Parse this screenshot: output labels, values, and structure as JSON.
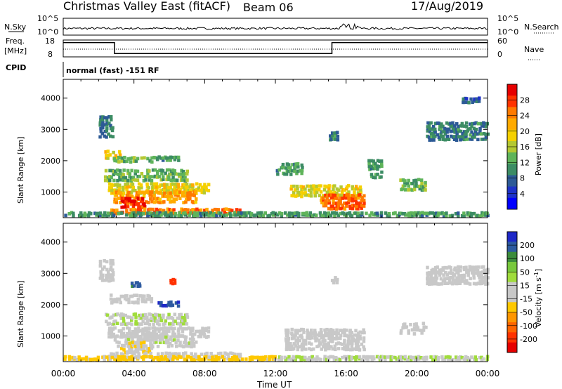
{
  "header": {
    "title": "Christmas Valley East (fitACF)",
    "beam": "Beam 06",
    "date": "17/Aug/2019"
  },
  "strips": {
    "nsky_label": "N.Sky",
    "nsky_ticks": [
      "10^5",
      "10^0"
    ],
    "nsearch_label": "N.Search",
    "nsearch_ticks": [
      "10^5",
      "10^0"
    ],
    "freq_label_1": "Freq.",
    "freq_label_2": "[MHz]",
    "freq_ticks": [
      "18",
      "8"
    ],
    "nave_label": "Nave",
    "nave_ticks": [
      "60",
      "0"
    ],
    "cpid_label": "CPID",
    "cpid_text": "normal (fast) -151 RF"
  },
  "xaxis": {
    "label": "Time UT",
    "ticks": [
      "00:00",
      "04:00",
      "08:00",
      "12:00",
      "16:00",
      "20:00",
      "00:00"
    ]
  },
  "colorbars": {
    "power": {
      "label": "Power [dB]",
      "ticks": [
        "28",
        "24",
        "20",
        "16",
        "12",
        "8",
        "4"
      ],
      "colors": [
        "#e60000",
        "#ff3300",
        "#ff7a00",
        "#ffaa00",
        "#f5d000",
        "#b4c832",
        "#5fb45a",
        "#3c8c64",
        "#2d5a96",
        "#1e32c8",
        "#0000ff"
      ]
    },
    "velocity": {
      "label": "Velocity [m s^-1]",
      "ticks": [
        "200",
        "100",
        "50",
        "15",
        "-15",
        "-50",
        "-100",
        "-200"
      ],
      "colors": [
        "#1e28c8",
        "#2d5aa0",
        "#3c8c3c",
        "#78c83c",
        "#a0dc3c",
        "#c8c8c8",
        "#c8c8c8",
        "#ffc800",
        "#ff9600",
        "#ff6400",
        "#ff3200",
        "#e60000"
      ]
    }
  },
  "chart_data": [
    {
      "type": "line",
      "title": "N.Sky / N.Search",
      "x_range_hours": [
        0,
        24
      ],
      "series": [
        {
          "name": "N.Sky",
          "value_approx": "10^1 to 10^2"
        }
      ]
    },
    {
      "type": "line",
      "title": "Freq. / Nave",
      "series": [
        {
          "name": "Freq. [MHz]",
          "segments": [
            {
              "x": [
                0,
                2.9
              ],
              "y": 16.5
            },
            {
              "x": [
                2.9,
                15.2
              ],
              "y": 10
            },
            {
              "x": [
                15.2,
                24
              ],
              "y": 16.5
            }
          ]
        },
        {
          "name": "Nave",
          "value": 22
        }
      ]
    },
    {
      "type": "heatmap",
      "title": "Power [dB]",
      "xlabel": "Time UT",
      "ylabel": "Slant Range [km]",
      "xlim_hours": [
        0,
        24
      ],
      "ylim_km": [
        180,
        4600
      ],
      "yticks": [
        1000,
        2000,
        3000,
        4000
      ],
      "clim": [
        0,
        30
      ],
      "regions": [
        {
          "t": [
            2.0,
            2.8
          ],
          "r": [
            2700,
            3400
          ],
          "v": 8
        },
        {
          "t": [
            2.3,
            3.2
          ],
          "r": [
            2000,
            2300
          ],
          "v": 18
        },
        {
          "t": [
            2.8,
            5.0
          ],
          "r": [
            1900,
            2100
          ],
          "v": 12
        },
        {
          "t": [
            5.0,
            6.5
          ],
          "r": [
            1950,
            2100
          ],
          "v": 10
        },
        {
          "t": [
            2.3,
            7.0
          ],
          "r": [
            1300,
            1700
          ],
          "v": 12
        },
        {
          "t": [
            2.5,
            8.2
          ],
          "r": [
            900,
            1250
          ],
          "v": 17
        },
        {
          "t": [
            2.8,
            7.5
          ],
          "r": [
            600,
            1000
          ],
          "v": 22
        },
        {
          "t": [
            3.2,
            4.6
          ],
          "r": [
            450,
            800
          ],
          "v": 28
        },
        {
          "t": [
            2.5,
            10.0
          ],
          "r": [
            250,
            450
          ],
          "v": 24
        },
        {
          "t": [
            0.0,
            24.0
          ],
          "r": [
            180,
            320
          ],
          "v": 10
        },
        {
          "t": [
            12.8,
            16.8
          ],
          "r": [
            800,
            1200
          ],
          "v": 17
        },
        {
          "t": [
            14.5,
            17.0
          ],
          "r": [
            400,
            900
          ],
          "v": 25
        },
        {
          "t": [
            12.0,
            13.5
          ],
          "r": [
            1500,
            1900
          ],
          "v": 10
        },
        {
          "t": [
            15.0,
            15.5
          ],
          "r": [
            2600,
            2900
          ],
          "v": 8
        },
        {
          "t": [
            17.2,
            18.0
          ],
          "r": [
            1400,
            2000
          ],
          "v": 10
        },
        {
          "t": [
            19.0,
            20.5
          ],
          "r": [
            1000,
            1400
          ],
          "v": 12
        },
        {
          "t": [
            20.5,
            24.0
          ],
          "r": [
            2600,
            3200
          ],
          "v": 8
        },
        {
          "t": [
            22.5,
            23.5
          ],
          "r": [
            3800,
            4000
          ],
          "v": 6
        }
      ]
    },
    {
      "type": "heatmap",
      "title": "Velocity [m s^-1]",
      "xlabel": "Time UT",
      "ylabel": "Slant Range [km]",
      "xlim_hours": [
        0,
        24
      ],
      "ylim_km": [
        180,
        4600
      ],
      "yticks": [
        1000,
        2000,
        3000,
        4000
      ],
      "clim": [
        -250,
        250
      ],
      "regions": [
        {
          "t": [
            2.0,
            2.8
          ],
          "r": [
            2700,
            3400
          ],
          "v": 0
        },
        {
          "t": [
            3.8,
            4.3
          ],
          "r": [
            2500,
            2700
          ],
          "v": 200
        },
        {
          "t": [
            5.3,
            6.5
          ],
          "r": [
            1900,
            2100
          ],
          "v": 220
        },
        {
          "t": [
            6.0,
            6.3
          ],
          "r": [
            2600,
            2800
          ],
          "v": -200
        },
        {
          "t": [
            2.5,
            5.0
          ],
          "r": [
            2000,
            2300
          ],
          "v": 0
        },
        {
          "t": [
            2.3,
            7.0
          ],
          "r": [
            1300,
            1700
          ],
          "v": 40
        },
        {
          "t": [
            2.5,
            8.2
          ],
          "r": [
            900,
            1250
          ],
          "v": 0
        },
        {
          "t": [
            2.8,
            7.5
          ],
          "r": [
            600,
            1000
          ],
          "v": 30
        },
        {
          "t": [
            3.2,
            5.0
          ],
          "r": [
            400,
            800
          ],
          "v": -40
        },
        {
          "t": [
            2.5,
            10.0
          ],
          "r": [
            250,
            450
          ],
          "v": -20
        },
        {
          "t": [
            0.0,
            12.0
          ],
          "r": [
            180,
            320
          ],
          "v": -60
        },
        {
          "t": [
            12.0,
            24.0
          ],
          "r": [
            180,
            320
          ],
          "v": 40
        },
        {
          "t": [
            12.5,
            17.0
          ],
          "r": [
            500,
            1200
          ],
          "v": 0
        },
        {
          "t": [
            15.0,
            15.5
          ],
          "r": [
            2600,
            2900
          ],
          "v": 0
        },
        {
          "t": [
            19.0,
            20.5
          ],
          "r": [
            1000,
            1400
          ],
          "v": 0
        },
        {
          "t": [
            20.5,
            24.0
          ],
          "r": [
            2600,
            3200
          ],
          "v": 0
        }
      ]
    }
  ]
}
